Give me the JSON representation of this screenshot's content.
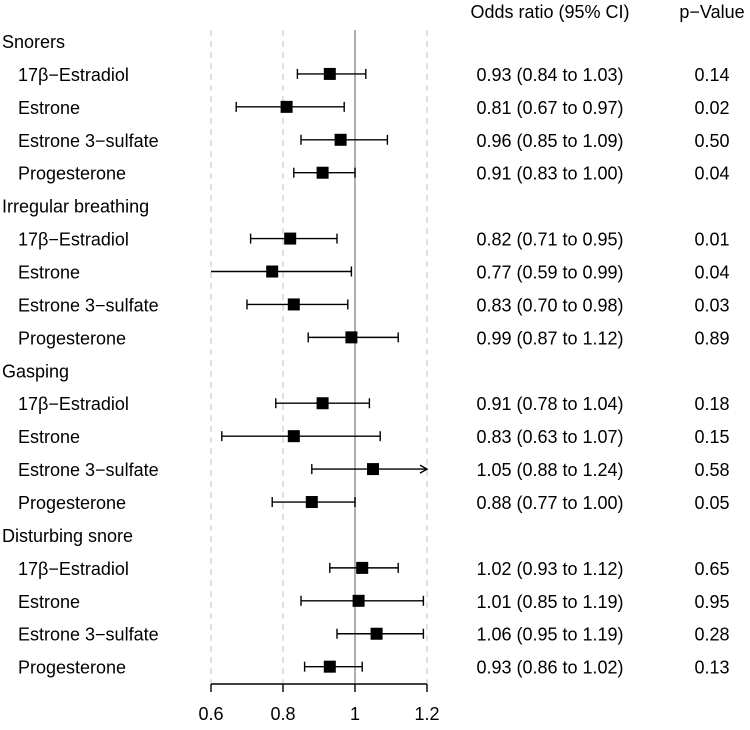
{
  "chart_data": {
    "type": "forest",
    "title": "",
    "xlabel": "",
    "ylabel": "",
    "xlim": [
      0.6,
      1.2
    ],
    "x_ticks": [
      0.6,
      0.8,
      1,
      1.2
    ],
    "x_tick_labels": [
      "0.6",
      "0.8",
      "1",
      "1.2"
    ],
    "reference_line": 1,
    "gridlines": [
      0.6,
      0.8,
      1.2
    ],
    "column_headers": {
      "or": "Odds ratio (95% CI)",
      "p": "p−Value"
    },
    "groups": [
      {
        "name": "Snorers",
        "rows": [
          {
            "label": "17β−Estradiol",
            "or": 0.93,
            "lo": 0.84,
            "hi": 1.03,
            "or_text": "0.93 (0.84 to 1.03)",
            "p": "0.14"
          },
          {
            "label": "Estrone",
            "or": 0.81,
            "lo": 0.67,
            "hi": 0.97,
            "or_text": "0.81 (0.67 to 0.97)",
            "p": "0.02"
          },
          {
            "label": "Estrone 3−sulfate",
            "or": 0.96,
            "lo": 0.85,
            "hi": 1.09,
            "or_text": "0.96 (0.85 to 1.09)",
            "p": "0.50"
          },
          {
            "label": "Progesterone",
            "or": 0.91,
            "lo": 0.83,
            "hi": 1.0,
            "or_text": "0.91 (0.83 to 1.00)",
            "p": "0.04"
          }
        ]
      },
      {
        "name": "Irregular breathing",
        "rows": [
          {
            "label": "17β−Estradiol",
            "or": 0.82,
            "lo": 0.71,
            "hi": 0.95,
            "or_text": "0.82 (0.71 to 0.95)",
            "p": "0.01"
          },
          {
            "label": "Estrone",
            "or": 0.77,
            "lo": 0.59,
            "hi": 0.99,
            "or_text": "0.77 (0.59 to 0.99)",
            "p": "0.04"
          },
          {
            "label": "Estrone 3−sulfate",
            "or": 0.83,
            "lo": 0.7,
            "hi": 0.98,
            "or_text": "0.83 (0.70 to 0.98)",
            "p": "0.03"
          },
          {
            "label": "Progesterone",
            "or": 0.99,
            "lo": 0.87,
            "hi": 1.12,
            "or_text": "0.99 (0.87 to 1.12)",
            "p": "0.89"
          }
        ]
      },
      {
        "name": "Gasping",
        "rows": [
          {
            "label": "17β−Estradiol",
            "or": 0.91,
            "lo": 0.78,
            "hi": 1.04,
            "or_text": "0.91 (0.78 to 1.04)",
            "p": "0.18"
          },
          {
            "label": "Estrone",
            "or": 0.83,
            "lo": 0.63,
            "hi": 1.07,
            "or_text": "0.83 (0.63 to 1.07)",
            "p": "0.15"
          },
          {
            "label": "Estrone 3−sulfate",
            "or": 1.05,
            "lo": 0.88,
            "hi": 1.24,
            "or_text": "1.05 (0.88 to 1.24)",
            "p": "0.58"
          },
          {
            "label": "Progesterone",
            "or": 0.88,
            "lo": 0.77,
            "hi": 1.0,
            "or_text": "0.88 (0.77 to 1.00)",
            "p": "0.05"
          }
        ]
      },
      {
        "name": "Disturbing snore",
        "rows": [
          {
            "label": "17β−Estradiol",
            "or": 1.02,
            "lo": 0.93,
            "hi": 1.12,
            "or_text": "1.02 (0.93 to 1.12)",
            "p": "0.65"
          },
          {
            "label": "Estrone",
            "or": 1.01,
            "lo": 0.85,
            "hi": 1.19,
            "or_text": "1.01 (0.85 to 1.19)",
            "p": "0.95"
          },
          {
            "label": "Estrone 3−sulfate",
            "or": 1.06,
            "lo": 0.95,
            "hi": 1.19,
            "or_text": "1.06 (0.95 to 1.19)",
            "p": "0.28"
          },
          {
            "label": "Progesterone",
            "or": 0.93,
            "lo": 0.86,
            "hi": 1.02,
            "or_text": "0.93 (0.86 to 1.02)",
            "p": "0.13"
          }
        ]
      }
    ],
    "colors": {
      "marker": "#000000",
      "reference": "#999999",
      "grid": "#cccccc",
      "text": "#000000"
    }
  }
}
